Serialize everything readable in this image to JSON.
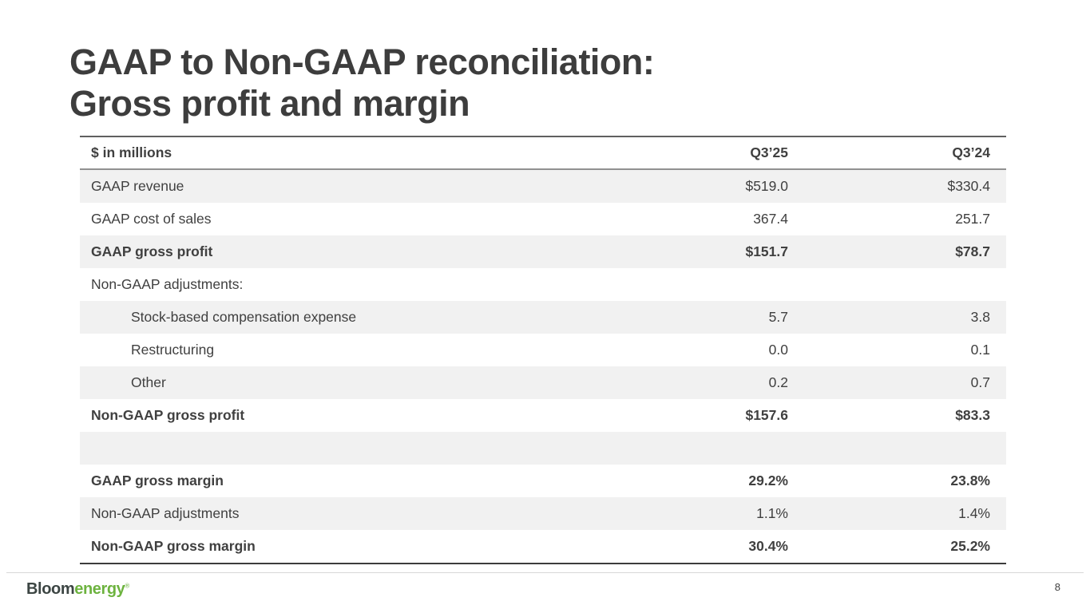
{
  "slide": {
    "title_line1": "GAAP to Non-GAAP reconciliation:",
    "title_line2": "Gross profit and margin",
    "page_number": "8"
  },
  "logo": {
    "bloom": "Bloom",
    "energy": "energy",
    "mark": "®",
    "bloom_color": "#3c4543",
    "energy_color": "#6db33f"
  },
  "table": {
    "header": {
      "label": "$ in millions",
      "col1": "Q3’25",
      "col2": "Q3’24"
    },
    "rows": [
      {
        "label": "GAAP revenue",
        "q325": "$519.0",
        "q324": "$330.4",
        "bold": false,
        "indent": false,
        "shaded": true
      },
      {
        "label": "GAAP cost of sales",
        "q325": "367.4",
        "q324": "251.7",
        "bold": false,
        "indent": false,
        "shaded": false
      },
      {
        "label": "GAAP gross profit",
        "q325": "$151.7",
        "q324": "$78.7",
        "bold": true,
        "indent": false,
        "shaded": true
      },
      {
        "label": "Non-GAAP adjustments:",
        "q325": "",
        "q324": "",
        "bold": false,
        "indent": false,
        "shaded": false
      },
      {
        "label": "Stock-based compensation expense",
        "q325": "5.7",
        "q324": "3.8",
        "bold": false,
        "indent": true,
        "shaded": true
      },
      {
        "label": "Restructuring",
        "q325": "0.0",
        "q324": "0.1",
        "bold": false,
        "indent": true,
        "shaded": false
      },
      {
        "label": "Other",
        "q325": "0.2",
        "q324": "0.7",
        "bold": false,
        "indent": true,
        "shaded": true
      },
      {
        "label": "Non-GAAP gross profit",
        "q325": "$157.6",
        "q324": "$83.3",
        "bold": true,
        "indent": false,
        "shaded": false
      },
      {
        "label": "",
        "q325": "",
        "q324": "",
        "bold": false,
        "indent": false,
        "shaded": true
      },
      {
        "label": "GAAP gross margin",
        "q325": "29.2%",
        "q324": "23.8%",
        "bold": true,
        "indent": false,
        "shaded": false
      },
      {
        "label": "Non-GAAP adjustments",
        "q325": "1.1%",
        "q324": "1.4%",
        "bold": false,
        "indent": false,
        "shaded": true
      },
      {
        "label": "Non-GAAP gross margin",
        "q325": "30.4%",
        "q324": "25.2%",
        "bold": true,
        "indent": false,
        "shaded": false
      }
    ]
  },
  "colors": {
    "text": "#404040",
    "title": "#3d3d3d",
    "shaded_row": "#f1f1f1",
    "rule_top": "#606060",
    "rule_header": "#909090",
    "rule_bottom": "#3c3c3c",
    "footer_rule": "#d8d8d8"
  }
}
